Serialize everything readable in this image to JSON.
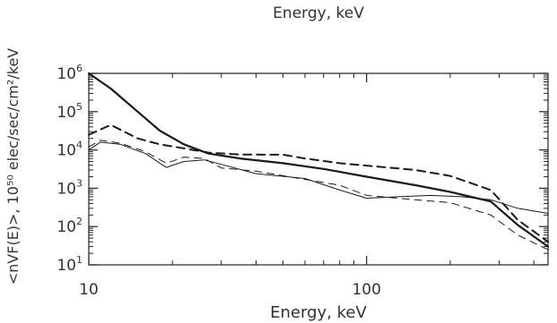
{
  "header_caption": "Energy, keV",
  "chart_data": {
    "type": "line",
    "xlabel": "Energy, keV",
    "ylabel": "<nVF(E)>, 10⁵⁰ elec/sec/cm²/keV",
    "xscale": "log",
    "yscale": "log",
    "xlim": [
      10,
      450
    ],
    "ylim": [
      10,
      1000000
    ],
    "x_ticks": [
      {
        "value": 10,
        "label": "10"
      },
      {
        "value": 100,
        "label": "100"
      }
    ],
    "y_ticks": [
      {
        "value": 10,
        "base": "10",
        "exp": "1"
      },
      {
        "value": 100,
        "base": "10",
        "exp": "2"
      },
      {
        "value": 1000,
        "base": "10",
        "exp": "3"
      },
      {
        "value": 10000,
        "base": "10",
        "exp": "4"
      },
      {
        "value": 100000,
        "base": "10",
        "exp": "5"
      },
      {
        "value": 1000000,
        "base": "10",
        "exp": "6"
      }
    ],
    "grid": false,
    "legend": "none",
    "series": [
      {
        "style": "thick-solid",
        "x": [
          10,
          12,
          15,
          18,
          22,
          27,
          35,
          50,
          70,
          100,
          150,
          200,
          280,
          350,
          450
        ],
        "y": [
          1000000,
          400000,
          100000,
          32000,
          14000,
          8000,
          6000,
          4500,
          3200,
          2000,
          1200,
          800,
          450,
          110,
          30
        ]
      },
      {
        "style": "thick-dashed",
        "x": [
          10,
          12,
          15,
          18,
          22,
          27,
          35,
          50,
          60,
          80,
          100,
          150,
          200,
          280,
          350,
          450
        ],
        "y": [
          25000,
          45000,
          20000,
          14000,
          11000,
          8500,
          7600,
          7500,
          6000,
          4500,
          3900,
          3000,
          2100,
          900,
          150,
          40
        ]
      },
      {
        "style": "thin-solid",
        "x": [
          10,
          11,
          13,
          16,
          19,
          22,
          26,
          30,
          40,
          60,
          80,
          100,
          130,
          170,
          220,
          280,
          350,
          450
        ],
        "y": [
          10000,
          16000,
          14000,
          8000,
          3500,
          5000,
          5500,
          4200,
          2400,
          1800,
          900,
          550,
          600,
          650,
          600,
          500,
          300,
          220
        ]
      },
      {
        "style": "thin-dashed",
        "x": [
          10,
          11,
          13,
          16,
          19,
          22,
          26,
          30,
          40,
          60,
          80,
          100,
          150,
          200,
          280,
          350,
          450
        ],
        "y": [
          12000,
          18000,
          15000,
          9000,
          4500,
          6500,
          6000,
          3400,
          2800,
          1700,
          1200,
          650,
          500,
          420,
          200,
          60,
          25
        ]
      }
    ]
  }
}
